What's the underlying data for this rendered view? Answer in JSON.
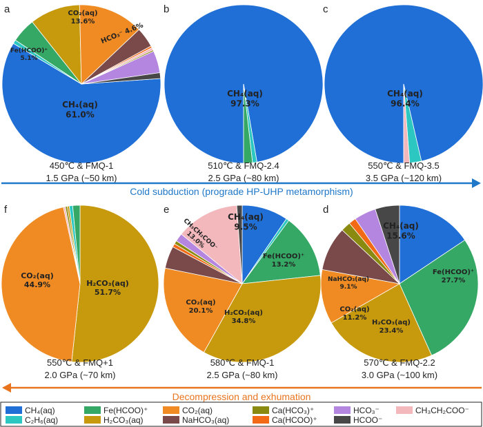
{
  "chart_data": [
    {
      "panel": "a",
      "type": "pie",
      "condition_line1": "450℃ & FMQ-1",
      "condition_line2": "1.5 GPa (~50 km)",
      "slices": [
        {
          "species": "CH4",
          "value": 61.0,
          "label": "CH₄(aq)",
          "pct": "61.0%"
        },
        {
          "species": "C2H6",
          "value": 0.8
        },
        {
          "species": "FeHCOO",
          "value": 5.1,
          "label": "Fe(HCOO)⁺",
          "pct": "5.1%"
        },
        {
          "species": "H2CO3",
          "value": 10.5
        },
        {
          "species": "CO2",
          "value": 13.6,
          "label": "CO₂(aq)",
          "pct": "13.6%"
        },
        {
          "species": "NaHCO3",
          "value": 4.2
        },
        {
          "species": "CaHCOO",
          "value": 0.4
        },
        {
          "species": "CH3CH2COO",
          "value": 0.5
        },
        {
          "species": "CaHCO3",
          "value": 0.3
        },
        {
          "species": "HCO3",
          "value": 4.6,
          "label": "HCO₃⁻",
          "pct": "4.6%"
        },
        {
          "species": "HCOO",
          "value": 1.2
        }
      ]
    },
    {
      "panel": "b",
      "type": "pie",
      "condition_line1": "510℃ & FMQ-2.4",
      "condition_line2": "2.5 GPa (~80 km)",
      "slices": [
        {
          "species": "CH4",
          "value": 97.3,
          "label": "CH₄(aq)",
          "pct": "97.3%"
        },
        {
          "species": "C2H6",
          "value": 0.9
        },
        {
          "species": "FeHCOO",
          "value": 1.8
        }
      ]
    },
    {
      "panel": "c",
      "type": "pie",
      "condition_line1": "550℃ & FMQ-3.5",
      "condition_line2": "3.5 GPa (~120 km)",
      "slices": [
        {
          "species": "CH4",
          "value": 96.4,
          "label": "CH₄(aq)",
          "pct": "96.4%"
        },
        {
          "species": "C2H6",
          "value": 2.4
        },
        {
          "species": "CH3CH2COO",
          "value": 1.2
        }
      ]
    },
    {
      "panel": "f",
      "type": "pie",
      "condition_line1": "550℃ & FMQ+1",
      "condition_line2": "2.0 GPa (~70 km)",
      "slices": [
        {
          "species": "H2CO3",
          "value": 51.7,
          "label": "H₂CO₃(aq)",
          "pct": "51.7%"
        },
        {
          "species": "CO2",
          "value": 44.9,
          "label": "CO₂(aq)",
          "pct": "44.9%"
        },
        {
          "species": "CH3CH2COO",
          "value": 0.4
        },
        {
          "species": "CaHCO3",
          "value": 0.4
        },
        {
          "species": "H2CO3",
          "value": 0.4
        },
        {
          "species": "C2H6",
          "value": 0.7
        },
        {
          "species": "FeHCOO",
          "value": 1.5
        }
      ]
    },
    {
      "panel": "e",
      "type": "pie",
      "condition_line1": "580℃ & FMQ-1",
      "condition_line2": "2.5 GPa (~80 km)",
      "slices": [
        {
          "species": "CH4",
          "value": 9.5,
          "label": "CH₄(aq)",
          "pct": "9.5%"
        },
        {
          "species": "C2H6",
          "value": 0.6
        },
        {
          "species": "FeHCOO",
          "value": 13.2,
          "label": "Fe(HCOO)⁺",
          "pct": "13.2%"
        },
        {
          "species": "H2CO3",
          "value": 34.8,
          "label": "H₂CO₃(aq)",
          "pct": "34.8%"
        },
        {
          "species": "CO2",
          "value": 20.1,
          "label": "CO₂(aq)",
          "pct": "20.1%"
        },
        {
          "species": "NaHCO3",
          "value": 4.6
        },
        {
          "species": "CaHCOO",
          "value": 0.7
        },
        {
          "species": "CaHCO3",
          "value": 0.7
        },
        {
          "species": "HCO3",
          "value": 1.7
        },
        {
          "species": "CH3CH2COO",
          "value": 13.0,
          "label": "CH₃CH₂COO⁻",
          "pct": "13.0%"
        },
        {
          "species": "HCOO",
          "value": 1.1
        }
      ]
    },
    {
      "panel": "d",
      "type": "pie",
      "condition_line1": "570℃ & FMQ-2.2",
      "condition_line2": "3.0 GPa (~100 km)",
      "slices": [
        {
          "species": "CH4",
          "value": 15.6,
          "label": "CH₄(aq)",
          "pct": "15.6%"
        },
        {
          "species": "FeHCOO",
          "value": 27.7,
          "label": "Fe(HCOO)⁺",
          "pct": "27.7%"
        },
        {
          "species": "H2CO3",
          "value": 23.4,
          "label": "H₂CO₃(aq)",
          "pct": "23.4%"
        },
        {
          "species": "CO2",
          "value": 11.2,
          "label": "CO₂(aq)",
          "pct": "11.2%"
        },
        {
          "species": "NaHCO3",
          "value": 9.1,
          "label": "NaHCO₃(aq)",
          "pct": "9.1%"
        },
        {
          "species": "CaHCO3",
          "value": 2.0
        },
        {
          "species": "CaHCOO",
          "value": 1.5
        },
        {
          "species": "HCO3",
          "value": 4.5
        },
        {
          "species": "HCOO",
          "value": 5.0
        }
      ]
    }
  ],
  "arrows": {
    "top": "Cold subduction (prograde HP-UHP metamorphism)",
    "bottom": "Decompression and exhumation"
  },
  "legend": [
    {
      "species": "CH4",
      "label": "CH₄(aq)"
    },
    {
      "species": "FeHCOO",
      "label": "Fe(HCOO)⁺"
    },
    {
      "species": "CO2",
      "label": "CO₂(aq)"
    },
    {
      "species": "CaHCO3",
      "label": "Ca(HCO₃)⁺"
    },
    {
      "species": "HCO3",
      "label": "HCO₃⁻"
    },
    {
      "species": "CH3CH2COO",
      "label": "CH₃CH₂COO⁻"
    },
    {
      "species": "C2H6",
      "label": "C₂H₆(aq)"
    },
    {
      "species": "H2CO3",
      "label": "H₂CO₃(aq)"
    },
    {
      "species": "NaHCO3",
      "label": "NaHCO₃(aq)"
    },
    {
      "species": "CaHCOO",
      "label": "Ca(HCOO)⁺"
    },
    {
      "species": "HCOO",
      "label": "HCOO⁻"
    }
  ],
  "colors": {
    "CH4": "#1f6fd6",
    "FeHCOO": "#35a865",
    "CO2": "#ef8b22",
    "CaHCO3": "#8a8a10",
    "HCO3": "#b586e0",
    "CH3CH2COO": "#f2b8bc",
    "C2H6": "#2cc7c0",
    "H2CO3": "#c79a0e",
    "NaHCO3": "#7a4a4a",
    "CaHCOO": "#f26a16",
    "HCOO": "#474747",
    "arrow_top": "#1f78c8",
    "arrow_bottom": "#e8741e"
  }
}
